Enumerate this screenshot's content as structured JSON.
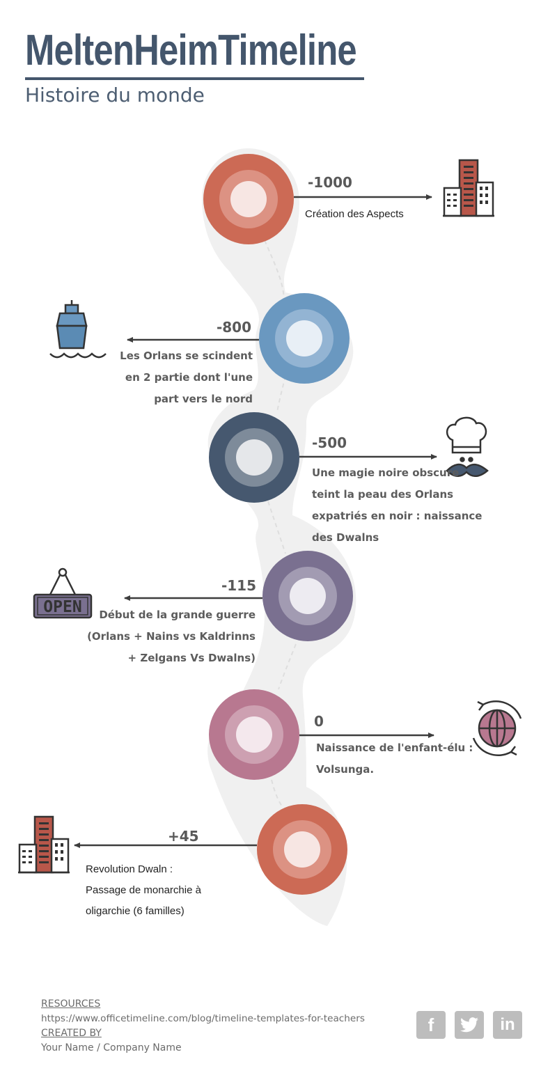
{
  "header": {
    "title": "MeltenHeimTimeline",
    "subtitle": "Histoire du monde"
  },
  "colors": {
    "title": "#44566c",
    "coral": "#cc6a55",
    "blue": "#6a98c0",
    "navy": "#46586f",
    "purple": "#7a7090",
    "mauve": "#b87890",
    "path": "#efefef",
    "arrow": "#3d3d3d"
  },
  "events": [
    {
      "year": "-1000",
      "lines": [
        "Création des Aspects"
      ],
      "icon": "city-buildings-icon"
    },
    {
      "year": "-800",
      "lines": [
        "Les Orlans se scindent",
        "en 2 partie dont l'une",
        "part vers le nord"
      ],
      "icon": "ship-icon"
    },
    {
      "year": "-500",
      "lines": [
        "Une magie noire obscure",
        "teint la peau des Orlans",
        "expatriés en noir : naissance",
        "des Dwalns"
      ],
      "icon": "chef-mustache-icon"
    },
    {
      "year": "-115",
      "lines": [
        "Début de la grande guerre",
        "(Orlans + Nains vs Kaldrinns",
        "+ Zelgans Vs Dwalns)"
      ],
      "icon": "open-sign-icon",
      "icon_text": "OPEN"
    },
    {
      "year": "0",
      "lines": [
        "Naissance de l'enfant-élu :",
        "Volsunga."
      ],
      "icon": "globe-refresh-icon"
    },
    {
      "year": "+45",
      "lines": [
        "Revolution Dwaln :",
        "Passage de monarchie à",
        "oligarchie (6 familles)"
      ],
      "icon": "city-buildings-icon"
    }
  ],
  "footer": {
    "resources_label": "RESOURCES",
    "resources_url": "https://www.officetimeline.com/blog/timeline-templates-for-teachers",
    "created_label": "CREATED BY",
    "created_value": "Your Name / Company Name",
    "social": [
      {
        "icon": "facebook-icon",
        "glyph": "f"
      },
      {
        "icon": "twitter-icon",
        "glyph": "t"
      },
      {
        "icon": "linkedin-icon",
        "glyph": "in"
      }
    ]
  }
}
